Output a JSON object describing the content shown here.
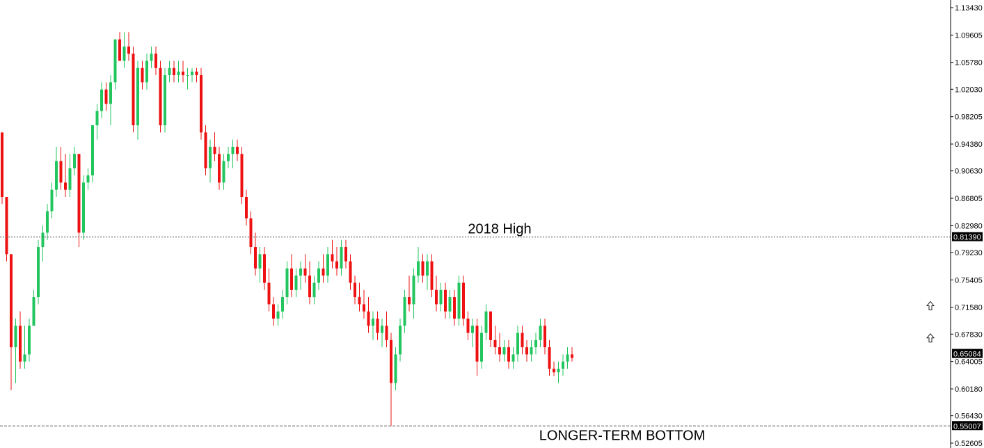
{
  "chart_data": {
    "type": "candlestick",
    "title": "",
    "y_axis": {
      "position": "right",
      "ylim": [
        0.51,
        1.14
      ],
      "tick_labels": [
        "1.13430",
        "1.09605",
        "1.05780",
        "1.02030",
        "0.98205",
        "0.94380",
        "0.90630",
        "0.86805",
        "0.82980",
        "0.79230",
        "0.75405",
        "0.71580",
        "0.67830",
        "0.64005",
        "0.60180",
        "0.56430",
        "0.52605"
      ]
    },
    "grid": false,
    "colors": {
      "up": "#22c55e",
      "down": "#ee1111",
      "wick": "#444444",
      "level_line": "#555555",
      "tag_bg": "#000000"
    },
    "levels": [
      {
        "value": 0.8139,
        "tag": "0.81390",
        "label": "2018 High",
        "style": "dotted"
      },
      {
        "value": 0.55007,
        "tag": "0.55007",
        "label": "LONGER-TERM BOTTOM",
        "style": "dashed"
      }
    ],
    "current_price": {
      "value": 0.65084,
      "tag": "0.65084"
    },
    "markers": [
      {
        "type": "arrow-up",
        "value": 0.718
      },
      {
        "type": "arrow-up",
        "value": 0.673
      }
    ],
    "candles": [
      [
        0.96,
        0.96,
        0.86,
        0.87
      ],
      [
        0.87,
        0.87,
        0.78,
        0.79
      ],
      [
        0.79,
        0.79,
        0.6,
        0.66
      ],
      [
        0.66,
        0.7,
        0.61,
        0.69
      ],
      [
        0.69,
        0.71,
        0.63,
        0.64
      ],
      [
        0.64,
        0.69,
        0.63,
        0.65
      ],
      [
        0.65,
        0.7,
        0.64,
        0.69
      ],
      [
        0.69,
        0.74,
        0.69,
        0.73
      ],
      [
        0.73,
        0.81,
        0.72,
        0.8
      ],
      [
        0.8,
        0.83,
        0.78,
        0.82
      ],
      [
        0.82,
        0.86,
        0.81,
        0.85
      ],
      [
        0.85,
        0.89,
        0.84,
        0.88
      ],
      [
        0.88,
        0.94,
        0.87,
        0.92
      ],
      [
        0.92,
        0.94,
        0.88,
        0.89
      ],
      [
        0.89,
        0.93,
        0.87,
        0.88
      ],
      [
        0.88,
        0.93,
        0.87,
        0.91
      ],
      [
        0.91,
        0.94,
        0.9,
        0.93
      ],
      [
        0.93,
        0.93,
        0.8,
        0.82
      ],
      [
        0.82,
        0.9,
        0.81,
        0.89
      ],
      [
        0.89,
        0.91,
        0.88,
        0.9
      ],
      [
        0.9,
        0.97,
        0.89,
        0.97
      ],
      [
        0.97,
        1.0,
        0.95,
        0.99
      ],
      [
        0.99,
        1.03,
        0.98,
        1.02
      ],
      [
        1.02,
        1.03,
        0.99,
        1.0
      ],
      [
        1.0,
        1.04,
        0.97,
        1.03
      ],
      [
        1.03,
        1.09,
        1.02,
        1.09
      ],
      [
        1.09,
        1.1,
        1.06,
        1.06
      ],
      [
        1.06,
        1.1,
        1.05,
        1.08
      ],
      [
        1.08,
        1.1,
        1.06,
        1.07
      ],
      [
        1.07,
        1.08,
        0.96,
        0.97
      ],
      [
        0.97,
        1.06,
        0.95,
        1.05
      ],
      [
        1.05,
        1.06,
        1.02,
        1.03
      ],
      [
        1.03,
        1.07,
        1.02,
        1.06
      ],
      [
        1.06,
        1.08,
        1.05,
        1.07
      ],
      [
        1.07,
        1.08,
        1.04,
        1.05
      ],
      [
        1.05,
        1.06,
        0.96,
        0.97
      ],
      [
        0.97,
        1.05,
        0.96,
        1.04
      ],
      [
        1.04,
        1.06,
        1.03,
        1.05
      ],
      [
        1.05,
        1.06,
        1.03,
        1.04
      ],
      [
        1.04,
        1.06,
        1.03,
        1.045
      ],
      [
        1.045,
        1.06,
        1.03,
        1.04
      ],
      [
        1.04,
        1.05,
        1.02,
        1.04
      ],
      [
        1.04,
        1.05,
        1.03,
        1.045
      ],
      [
        1.045,
        1.05,
        1.03,
        1.04
      ],
      [
        1.04,
        1.05,
        0.95,
        0.96
      ],
      [
        0.96,
        0.97,
        0.9,
        0.91
      ],
      [
        0.91,
        0.95,
        0.89,
        0.94
      ],
      [
        0.94,
        0.96,
        0.92,
        0.93
      ],
      [
        0.93,
        0.94,
        0.88,
        0.89
      ],
      [
        0.89,
        0.93,
        0.88,
        0.92
      ],
      [
        0.92,
        0.94,
        0.91,
        0.93
      ],
      [
        0.93,
        0.95,
        0.91,
        0.94
      ],
      [
        0.94,
        0.95,
        0.92,
        0.93
      ],
      [
        0.93,
        0.94,
        0.86,
        0.87
      ],
      [
        0.87,
        0.88,
        0.83,
        0.84
      ],
      [
        0.84,
        0.85,
        0.79,
        0.8
      ],
      [
        0.8,
        0.82,
        0.76,
        0.77
      ],
      [
        0.77,
        0.8,
        0.75,
        0.79
      ],
      [
        0.79,
        0.8,
        0.74,
        0.75
      ],
      [
        0.75,
        0.77,
        0.71,
        0.72
      ],
      [
        0.72,
        0.73,
        0.69,
        0.7
      ],
      [
        0.7,
        0.72,
        0.69,
        0.71
      ],
      [
        0.71,
        0.74,
        0.7,
        0.73
      ],
      [
        0.73,
        0.78,
        0.72,
        0.77
      ],
      [
        0.77,
        0.79,
        0.73,
        0.74
      ],
      [
        0.74,
        0.77,
        0.73,
        0.76
      ],
      [
        0.76,
        0.78,
        0.74,
        0.77
      ],
      [
        0.77,
        0.79,
        0.75,
        0.76
      ],
      [
        0.76,
        0.78,
        0.72,
        0.73
      ],
      [
        0.73,
        0.76,
        0.72,
        0.75
      ],
      [
        0.75,
        0.78,
        0.74,
        0.77
      ],
      [
        0.77,
        0.79,
        0.75,
        0.76
      ],
      [
        0.76,
        0.8,
        0.75,
        0.79
      ],
      [
        0.79,
        0.81,
        0.77,
        0.78
      ],
      [
        0.78,
        0.8,
        0.76,
        0.77
      ],
      [
        0.77,
        0.81,
        0.76,
        0.8
      ],
      [
        0.8,
        0.81,
        0.77,
        0.78
      ],
      [
        0.78,
        0.79,
        0.74,
        0.75
      ],
      [
        0.75,
        0.76,
        0.72,
        0.73
      ],
      [
        0.73,
        0.75,
        0.71,
        0.72
      ],
      [
        0.72,
        0.74,
        0.7,
        0.71
      ],
      [
        0.71,
        0.73,
        0.68,
        0.69
      ],
      [
        0.69,
        0.71,
        0.67,
        0.7
      ],
      [
        0.7,
        0.71,
        0.67,
        0.68
      ],
      [
        0.68,
        0.7,
        0.66,
        0.69
      ],
      [
        0.69,
        0.71,
        0.66,
        0.67
      ],
      [
        0.67,
        0.68,
        0.55,
        0.61
      ],
      [
        0.61,
        0.66,
        0.6,
        0.65
      ],
      [
        0.65,
        0.7,
        0.64,
        0.69
      ],
      [
        0.69,
        0.74,
        0.68,
        0.73
      ],
      [
        0.73,
        0.76,
        0.71,
        0.72
      ],
      [
        0.72,
        0.77,
        0.7,
        0.76
      ],
      [
        0.76,
        0.8,
        0.75,
        0.78
      ],
      [
        0.78,
        0.79,
        0.75,
        0.76
      ],
      [
        0.76,
        0.79,
        0.74,
        0.78
      ],
      [
        0.78,
        0.79,
        0.73,
        0.74
      ],
      [
        0.74,
        0.76,
        0.71,
        0.72
      ],
      [
        0.72,
        0.75,
        0.71,
        0.74
      ],
      [
        0.74,
        0.75,
        0.7,
        0.71
      ],
      [
        0.71,
        0.74,
        0.7,
        0.73
      ],
      [
        0.73,
        0.74,
        0.69,
        0.7
      ],
      [
        0.7,
        0.76,
        0.69,
        0.75
      ],
      [
        0.75,
        0.76,
        0.69,
        0.7
      ],
      [
        0.7,
        0.71,
        0.67,
        0.68
      ],
      [
        0.68,
        0.7,
        0.66,
        0.69
      ],
      [
        0.69,
        0.7,
        0.62,
        0.64
      ],
      [
        0.64,
        0.69,
        0.63,
        0.68
      ],
      [
        0.68,
        0.72,
        0.67,
        0.71
      ],
      [
        0.71,
        0.71,
        0.66,
        0.67
      ],
      [
        0.67,
        0.69,
        0.65,
        0.66
      ],
      [
        0.66,
        0.68,
        0.64,
        0.65
      ],
      [
        0.65,
        0.67,
        0.64,
        0.66
      ],
      [
        0.66,
        0.67,
        0.63,
        0.64
      ],
      [
        0.64,
        0.66,
        0.63,
        0.65
      ],
      [
        0.65,
        0.69,
        0.64,
        0.68
      ],
      [
        0.68,
        0.69,
        0.65,
        0.66
      ],
      [
        0.66,
        0.67,
        0.64,
        0.65
      ],
      [
        0.65,
        0.67,
        0.64,
        0.66
      ],
      [
        0.66,
        0.68,
        0.65,
        0.67
      ],
      [
        0.67,
        0.7,
        0.66,
        0.69
      ],
      [
        0.69,
        0.7,
        0.65,
        0.66
      ],
      [
        0.66,
        0.67,
        0.62,
        0.63
      ],
      [
        0.63,
        0.64,
        0.62,
        0.625
      ],
      [
        0.625,
        0.64,
        0.61,
        0.63
      ],
      [
        0.63,
        0.65,
        0.62,
        0.64
      ],
      [
        0.64,
        0.66,
        0.63,
        0.65
      ],
      [
        0.65,
        0.66,
        0.64,
        0.645
      ]
    ]
  }
}
